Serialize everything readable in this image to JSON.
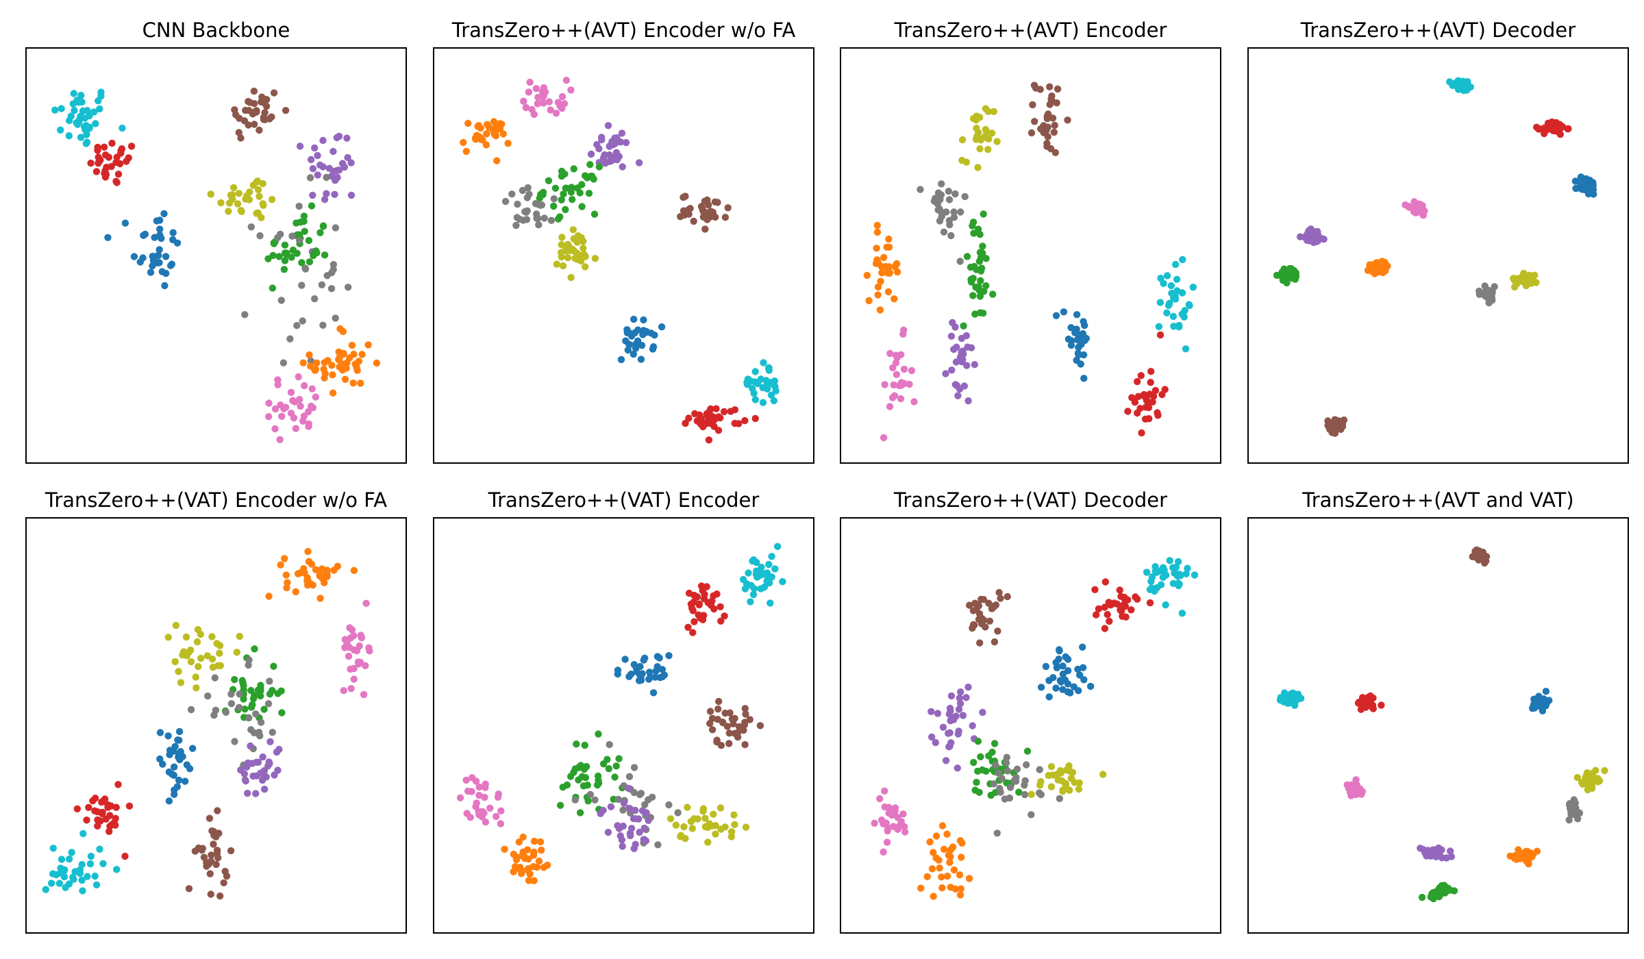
{
  "colors": {
    "c0": "#1f77b4",
    "c1": "#ff7f0e",
    "c2": "#2ca02c",
    "c3": "#d62728",
    "c4": "#9467bd",
    "c5": "#8c564b",
    "c6": "#e377c2",
    "c7": "#7f7f7f",
    "c8": "#bcbd22",
    "c9": "#17becf"
  },
  "chart_data": [
    {
      "type": "scatter",
      "title": "CNN Backbone",
      "xlabel": "",
      "ylabel": "",
      "grid": false,
      "xlim": [
        0,
        1
      ],
      "ylim": [
        0,
        1
      ],
      "clusters": [
        {
          "color": "c9",
          "center": [
            0.12,
            0.86
          ],
          "spread": [
            0.055,
            0.055
          ],
          "count": 38
        },
        {
          "color": "c3",
          "center": [
            0.21,
            0.74
          ],
          "spread": [
            0.045,
            0.04
          ],
          "count": 30
        },
        {
          "color": "c0",
          "center": [
            0.33,
            0.52
          ],
          "spread": [
            0.045,
            0.075
          ],
          "count": 32
        },
        {
          "color": "c5",
          "center": [
            0.61,
            0.87
          ],
          "spread": [
            0.05,
            0.05
          ],
          "count": 34
        },
        {
          "color": "c8",
          "center": [
            0.59,
            0.65
          ],
          "spread": [
            0.065,
            0.04
          ],
          "count": 28
        },
        {
          "color": "c4",
          "center": [
            0.83,
            0.73
          ],
          "spread": [
            0.05,
            0.07
          ],
          "count": 30
        },
        {
          "color": "c2",
          "center": [
            0.73,
            0.52
          ],
          "spread": [
            0.06,
            0.06
          ],
          "count": 38
        },
        {
          "color": "c7",
          "center": [
            0.73,
            0.44
          ],
          "spread": [
            0.08,
            0.15
          ],
          "count": 30
        },
        {
          "color": "c1",
          "center": [
            0.86,
            0.22
          ],
          "spread": [
            0.06,
            0.065
          ],
          "count": 40
        },
        {
          "color": "c6",
          "center": [
            0.72,
            0.11
          ],
          "spread": [
            0.07,
            0.05
          ],
          "count": 30
        }
      ]
    },
    {
      "type": "scatter",
      "title": "TransZero++(AVT) Encoder w/o FA",
      "xlabel": "",
      "ylabel": "",
      "grid": false,
      "xlim": [
        0,
        1
      ],
      "ylim": [
        0,
        1
      ],
      "clusters": [
        {
          "color": "c6",
          "center": [
            0.28,
            0.91
          ],
          "spread": [
            0.04,
            0.03
          ],
          "count": 26
        },
        {
          "color": "c1",
          "center": [
            0.11,
            0.81
          ],
          "spread": [
            0.045,
            0.03
          ],
          "count": 30
        },
        {
          "color": "c4",
          "center": [
            0.46,
            0.77
          ],
          "spread": [
            0.04,
            0.035
          ],
          "count": 30
        },
        {
          "color": "c2",
          "center": [
            0.35,
            0.67
          ],
          "spread": [
            0.05,
            0.04
          ],
          "count": 34
        },
        {
          "color": "c7",
          "center": [
            0.25,
            0.62
          ],
          "spread": [
            0.07,
            0.035
          ],
          "count": 26
        },
        {
          "color": "c8",
          "center": [
            0.36,
            0.5
          ],
          "spread": [
            0.045,
            0.045
          ],
          "count": 32
        },
        {
          "color": "c5",
          "center": [
            0.73,
            0.62
          ],
          "spread": [
            0.045,
            0.025
          ],
          "count": 30
        },
        {
          "color": "c0",
          "center": [
            0.54,
            0.28
          ],
          "spread": [
            0.03,
            0.035
          ],
          "count": 30
        },
        {
          "color": "c9",
          "center": [
            0.89,
            0.17
          ],
          "spread": [
            0.035,
            0.035
          ],
          "count": 30
        },
        {
          "color": "c3",
          "center": [
            0.76,
            0.08
          ],
          "spread": [
            0.05,
            0.02
          ],
          "count": 34
        }
      ]
    },
    {
      "type": "scatter",
      "title": "TransZero++(AVT) Encoder",
      "xlabel": "",
      "ylabel": "",
      "grid": false,
      "xlim": [
        0,
        1
      ],
      "ylim": [
        0,
        1
      ],
      "clusters": [
        {
          "color": "c5",
          "center": [
            0.55,
            0.86
          ],
          "spread": [
            0.025,
            0.065
          ],
          "count": 30
        },
        {
          "color": "c8",
          "center": [
            0.35,
            0.79
          ],
          "spread": [
            0.03,
            0.07
          ],
          "count": 26
        },
        {
          "color": "c7",
          "center": [
            0.26,
            0.62
          ],
          "spread": [
            0.04,
            0.06
          ],
          "count": 26
        },
        {
          "color": "c2",
          "center": [
            0.35,
            0.46
          ],
          "spread": [
            0.03,
            0.09
          ],
          "count": 34
        },
        {
          "color": "c1",
          "center": [
            0.09,
            0.47
          ],
          "spread": [
            0.03,
            0.06
          ],
          "count": 30
        },
        {
          "color": "c6",
          "center": [
            0.12,
            0.16
          ],
          "spread": [
            0.03,
            0.08
          ],
          "count": 24
        },
        {
          "color": "c4",
          "center": [
            0.3,
            0.22
          ],
          "spread": [
            0.025,
            0.08
          ],
          "count": 26
        },
        {
          "color": "c0",
          "center": [
            0.63,
            0.3
          ],
          "spread": [
            0.03,
            0.06
          ],
          "count": 28
        },
        {
          "color": "c9",
          "center": [
            0.91,
            0.38
          ],
          "spread": [
            0.03,
            0.08
          ],
          "count": 30
        },
        {
          "color": "c3",
          "center": [
            0.83,
            0.14
          ],
          "spread": [
            0.03,
            0.06
          ],
          "count": 30
        }
      ]
    },
    {
      "type": "scatter",
      "title": "TransZero++(AVT) Decoder",
      "xlabel": "",
      "ylabel": "",
      "grid": false,
      "xlim": [
        0,
        1
      ],
      "ylim": [
        0,
        1
      ],
      "clusters": [
        {
          "color": "c9",
          "center": [
            0.57,
            0.94
          ],
          "spread": [
            0.022,
            0.01
          ],
          "count": 34
        },
        {
          "color": "c3",
          "center": [
            0.83,
            0.83
          ],
          "spread": [
            0.022,
            0.012
          ],
          "count": 34
        },
        {
          "color": "c0",
          "center": [
            0.92,
            0.68
          ],
          "spread": [
            0.018,
            0.015
          ],
          "count": 34
        },
        {
          "color": "c6",
          "center": [
            0.44,
            0.62
          ],
          "spread": [
            0.022,
            0.013
          ],
          "count": 30
        },
        {
          "color": "c4",
          "center": [
            0.15,
            0.55
          ],
          "spread": [
            0.022,
            0.012
          ],
          "count": 32
        },
        {
          "color": "c2",
          "center": [
            0.08,
            0.45
          ],
          "spread": [
            0.018,
            0.013
          ],
          "count": 34
        },
        {
          "color": "c1",
          "center": [
            0.33,
            0.47
          ],
          "spread": [
            0.022,
            0.012
          ],
          "count": 32
        },
        {
          "color": "c8",
          "center": [
            0.75,
            0.44
          ],
          "spread": [
            0.022,
            0.012
          ],
          "count": 32
        },
        {
          "color": "c7",
          "center": [
            0.64,
            0.4
          ],
          "spread": [
            0.018,
            0.013
          ],
          "count": 30
        },
        {
          "color": "c5",
          "center": [
            0.21,
            0.06
          ],
          "spread": [
            0.016,
            0.012
          ],
          "count": 32
        }
      ]
    },
    {
      "type": "scatter",
      "title": "TransZero++(VAT) Encoder w/o FA",
      "xlabel": "",
      "ylabel": "",
      "grid": false,
      "xlim": [
        0,
        1
      ],
      "ylim": [
        0,
        1
      ],
      "clusters": [
        {
          "color": "c1",
          "center": [
            0.77,
            0.89
          ],
          "spread": [
            0.05,
            0.035
          ],
          "count": 36
        },
        {
          "color": "c6",
          "center": [
            0.9,
            0.7
          ],
          "spread": [
            0.03,
            0.06
          ],
          "count": 28
        },
        {
          "color": "c8",
          "center": [
            0.45,
            0.68
          ],
          "spread": [
            0.08,
            0.05
          ],
          "count": 30
        },
        {
          "color": "c2",
          "center": [
            0.6,
            0.59
          ],
          "spread": [
            0.05,
            0.06
          ],
          "count": 34
        },
        {
          "color": "c7",
          "center": [
            0.58,
            0.5
          ],
          "spread": [
            0.09,
            0.09
          ],
          "count": 26
        },
        {
          "color": "c0",
          "center": [
            0.38,
            0.41
          ],
          "spread": [
            0.04,
            0.06
          ],
          "count": 30
        },
        {
          "color": "c4",
          "center": [
            0.63,
            0.39
          ],
          "spread": [
            0.04,
            0.05
          ],
          "count": 30
        },
        {
          "color": "c3",
          "center": [
            0.18,
            0.28
          ],
          "spread": [
            0.04,
            0.055
          ],
          "count": 30
        },
        {
          "color": "c5",
          "center": [
            0.49,
            0.16
          ],
          "spread": [
            0.03,
            0.06
          ],
          "count": 30
        },
        {
          "color": "c9",
          "center": [
            0.1,
            0.13
          ],
          "spread": [
            0.055,
            0.05
          ],
          "count": 34
        }
      ]
    },
    {
      "type": "scatter",
      "title": "TransZero++(VAT) Encoder",
      "xlabel": "",
      "ylabel": "",
      "grid": false,
      "xlim": [
        0,
        1
      ],
      "ylim": [
        0,
        1
      ],
      "clusters": [
        {
          "color": "c9",
          "center": [
            0.89,
            0.87
          ],
          "spread": [
            0.04,
            0.05
          ],
          "count": 36
        },
        {
          "color": "c3",
          "center": [
            0.73,
            0.82
          ],
          "spread": [
            0.04,
            0.04
          ],
          "count": 30
        },
        {
          "color": "c0",
          "center": [
            0.56,
            0.64
          ],
          "spread": [
            0.055,
            0.03
          ],
          "count": 30
        },
        {
          "color": "c5",
          "center": [
            0.8,
            0.5
          ],
          "spread": [
            0.045,
            0.035
          ],
          "count": 32
        },
        {
          "color": "c2",
          "center": [
            0.4,
            0.37
          ],
          "spread": [
            0.06,
            0.06
          ],
          "count": 36
        },
        {
          "color": "c7",
          "center": [
            0.52,
            0.32
          ],
          "spread": [
            0.07,
            0.07
          ],
          "count": 26
        },
        {
          "color": "c6",
          "center": [
            0.1,
            0.3
          ],
          "spread": [
            0.04,
            0.05
          ],
          "count": 28
        },
        {
          "color": "c4",
          "center": [
            0.51,
            0.24
          ],
          "spread": [
            0.05,
            0.045
          ],
          "count": 30
        },
        {
          "color": "c8",
          "center": [
            0.73,
            0.25
          ],
          "spread": [
            0.07,
            0.03
          ],
          "count": 30
        },
        {
          "color": "c1",
          "center": [
            0.23,
            0.15
          ],
          "spread": [
            0.045,
            0.06
          ],
          "count": 34
        }
      ]
    },
    {
      "type": "scatter",
      "title": "TransZero++(VAT) Decoder",
      "xlabel": "",
      "ylabel": "",
      "grid": false,
      "xlim": [
        0,
        1
      ],
      "ylim": [
        0,
        1
      ],
      "clusters": [
        {
          "color": "c9",
          "center": [
            0.89,
            0.88
          ],
          "spread": [
            0.04,
            0.045
          ],
          "count": 36
        },
        {
          "color": "c3",
          "center": [
            0.75,
            0.81
          ],
          "spread": [
            0.045,
            0.03
          ],
          "count": 30
        },
        {
          "color": "c5",
          "center": [
            0.37,
            0.79
          ],
          "spread": [
            0.03,
            0.05
          ],
          "count": 30
        },
        {
          "color": "c0",
          "center": [
            0.6,
            0.63
          ],
          "spread": [
            0.04,
            0.05
          ],
          "count": 32
        },
        {
          "color": "c4",
          "center": [
            0.29,
            0.52
          ],
          "spread": [
            0.05,
            0.06
          ],
          "count": 32
        },
        {
          "color": "c2",
          "center": [
            0.4,
            0.39
          ],
          "spread": [
            0.05,
            0.05
          ],
          "count": 34
        },
        {
          "color": "c7",
          "center": [
            0.45,
            0.34
          ],
          "spread": [
            0.09,
            0.06
          ],
          "count": 26
        },
        {
          "color": "c8",
          "center": [
            0.58,
            0.36
          ],
          "spread": [
            0.06,
            0.03
          ],
          "count": 26
        },
        {
          "color": "c6",
          "center": [
            0.1,
            0.25
          ],
          "spread": [
            0.04,
            0.045
          ],
          "count": 26
        },
        {
          "color": "c1",
          "center": [
            0.27,
            0.15
          ],
          "spread": [
            0.04,
            0.055
          ],
          "count": 32
        }
      ]
    },
    {
      "type": "scatter",
      "title": "TransZero++(AVT and VAT)",
      "xlabel": "",
      "ylabel": "",
      "grid": false,
      "xlim": [
        0,
        1
      ],
      "ylim": [
        0,
        1
      ],
      "clusters": [
        {
          "color": "c5",
          "center": [
            0.62,
            0.94
          ],
          "spread": [
            0.013,
            0.01
          ],
          "count": 34
        },
        {
          "color": "c9",
          "center": [
            0.08,
            0.57
          ],
          "spread": [
            0.02,
            0.012
          ],
          "count": 34
        },
        {
          "color": "c3",
          "center": [
            0.3,
            0.56
          ],
          "spread": [
            0.02,
            0.012
          ],
          "count": 36
        },
        {
          "color": "c0",
          "center": [
            0.79,
            0.56
          ],
          "spread": [
            0.015,
            0.013
          ],
          "count": 34
        },
        {
          "color": "c8",
          "center": [
            0.93,
            0.36
          ],
          "spread": [
            0.015,
            0.014
          ],
          "count": 34
        },
        {
          "color": "c6",
          "center": [
            0.26,
            0.33
          ],
          "spread": [
            0.015,
            0.014
          ],
          "count": 34
        },
        {
          "color": "c7",
          "center": [
            0.88,
            0.28
          ],
          "spread": [
            0.018,
            0.018
          ],
          "count": 30
        },
        {
          "color": "c4",
          "center": [
            0.49,
            0.17
          ],
          "spread": [
            0.025,
            0.01
          ],
          "count": 32
        },
        {
          "color": "c1",
          "center": [
            0.75,
            0.16
          ],
          "spread": [
            0.02,
            0.01
          ],
          "count": 32
        },
        {
          "color": "c2",
          "center": [
            0.5,
            0.07
          ],
          "spread": [
            0.02,
            0.012
          ],
          "count": 34
        }
      ]
    }
  ]
}
